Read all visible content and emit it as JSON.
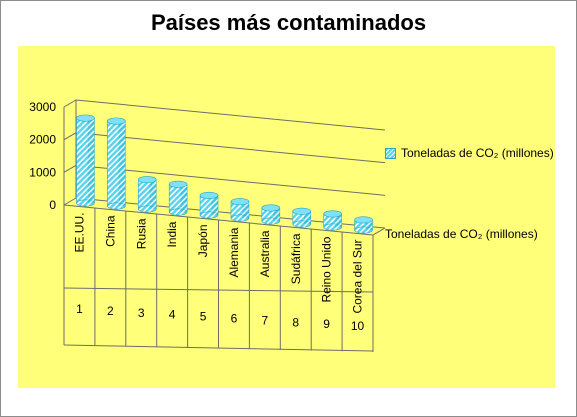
{
  "chart_data": {
    "type": "bar",
    "title": "Países más contaminados",
    "categories": [
      "EE.UU.",
      "China",
      "Rusia",
      "India",
      "Japón",
      "Alemania",
      "Australia",
      "Sudáfrica",
      "Reino Unido",
      "Corea del Sur"
    ],
    "ranks": [
      "1",
      "2",
      "3",
      "4",
      "5",
      "6",
      "7",
      "8",
      "9",
      "10"
    ],
    "series": [
      {
        "name": "Toneladas de CO₂  (millones)",
        "values": [
          2600,
          2600,
          900,
          850,
          600,
          500,
          400,
          390,
          400,
          310
        ],
        "color": "#55d4ee"
      }
    ],
    "yticks": [
      "3000",
      "2000",
      "1000",
      "0"
    ],
    "ylim": [
      0,
      3000
    ],
    "grid": true,
    "legend": "right",
    "series_axis_label": "Toneladas de CO₂  (millones)",
    "plot_background": "#ffff7a"
  }
}
